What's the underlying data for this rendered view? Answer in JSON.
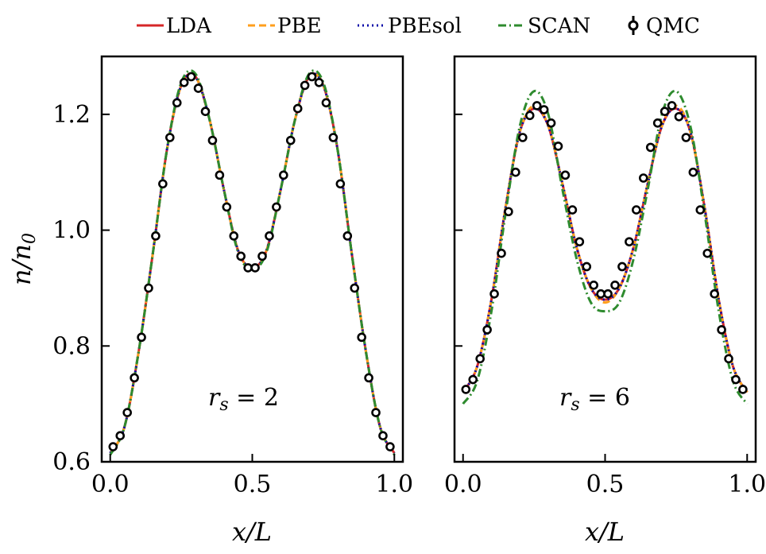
{
  "chart_data": {
    "type": "line",
    "ylabel": "n/n0",
    "xlabel": "x/L",
    "legend": {
      "placement": "top-center",
      "entries": [
        {
          "name": "LDA",
          "color": "#d62728",
          "style": "solid"
        },
        {
          "name": "PBE",
          "color": "#ff9f1c",
          "style": "dashed"
        },
        {
          "name": "PBEsol",
          "color": "#0a0aa8",
          "style": "dotted"
        },
        {
          "name": "SCAN",
          "color": "#2e8b2e",
          "style": "dashdot"
        },
        {
          "name": "QMC",
          "color": "#000000",
          "style": "markers"
        }
      ]
    },
    "panels": [
      {
        "annotation": "r_s = 2",
        "xlim": [
          -0.03,
          1.03
        ],
        "ylim": [
          0.6,
          1.3
        ],
        "xticks": [
          "0.0",
          "0.5",
          "1.0"
        ],
        "xtick_values": [
          0,
          0.5,
          1
        ],
        "yticks": [
          "0.6",
          "0.8",
          "1.0",
          "1.2"
        ],
        "ytick_values": [
          0.6,
          0.8,
          1.0,
          1.2
        ],
        "curves": {
          "x": [
            0.0,
            0.05,
            0.1,
            0.15,
            0.2,
            0.25,
            0.3,
            0.35,
            0.4,
            0.45,
            0.5,
            0.55,
            0.6,
            0.65,
            0.7,
            0.75,
            0.8,
            0.85,
            0.9,
            0.95,
            1.0
          ],
          "LDA": [
            0.615,
            0.66,
            0.79,
            0.96,
            1.14,
            1.25,
            1.265,
            1.19,
            1.07,
            0.965,
            0.935,
            0.965,
            1.07,
            1.19,
            1.265,
            1.25,
            1.14,
            0.96,
            0.79,
            0.66,
            0.615
          ],
          "PBE": [
            0.615,
            0.66,
            0.79,
            0.96,
            1.14,
            1.25,
            1.265,
            1.19,
            1.07,
            0.965,
            0.935,
            0.965,
            1.07,
            1.19,
            1.265,
            1.25,
            1.14,
            0.96,
            0.79,
            0.66,
            0.615
          ],
          "PBEsol": [
            0.615,
            0.66,
            0.79,
            0.96,
            1.14,
            1.25,
            1.265,
            1.19,
            1.07,
            0.965,
            0.935,
            0.965,
            1.07,
            1.19,
            1.265,
            1.25,
            1.14,
            0.96,
            0.79,
            0.66,
            0.615
          ],
          "SCAN": [
            0.612,
            0.66,
            0.79,
            0.96,
            1.14,
            1.255,
            1.27,
            1.19,
            1.07,
            0.962,
            0.932,
            0.962,
            1.07,
            1.19,
            1.27,
            1.255,
            1.14,
            0.96,
            0.79,
            0.66,
            0.612
          ]
        },
        "qmc": {
          "x": [
            0.01,
            0.035,
            0.06,
            0.085,
            0.11,
            0.135,
            0.16,
            0.185,
            0.21,
            0.235,
            0.26,
            0.285,
            0.31,
            0.335,
            0.36,
            0.385,
            0.41,
            0.435,
            0.46,
            0.485,
            0.51,
            0.535,
            0.56,
            0.585,
            0.61,
            0.635,
            0.66,
            0.685,
            0.71,
            0.735,
            0.76,
            0.785,
            0.81,
            0.835,
            0.86,
            0.885,
            0.91,
            0.935,
            0.96,
            0.985
          ],
          "y": [
            0.626,
            0.645,
            0.685,
            0.745,
            0.815,
            0.9,
            0.99,
            1.08,
            1.16,
            1.22,
            1.255,
            1.265,
            1.245,
            1.205,
            1.155,
            1.095,
            1.04,
            0.99,
            0.955,
            0.935,
            0.935,
            0.955,
            0.99,
            1.04,
            1.095,
            1.155,
            1.21,
            1.25,
            1.265,
            1.255,
            1.22,
            1.16,
            1.08,
            0.99,
            0.9,
            0.815,
            0.745,
            0.685,
            0.645,
            0.626
          ]
        }
      },
      {
        "annotation": "r_s = 6",
        "xlim": [
          -0.03,
          1.03
        ],
        "ylim": [
          0.6,
          1.3
        ],
        "xticks": [
          "0.0",
          "0.5",
          "1.0"
        ],
        "xtick_values": [
          0,
          0.5,
          1
        ],
        "yticks": [],
        "ytick_values": [
          0.6,
          0.8,
          1.0,
          1.2
        ],
        "curves": {
          "x": [
            0.0,
            0.05,
            0.1,
            0.15,
            0.2,
            0.25,
            0.3,
            0.35,
            0.4,
            0.45,
            0.5,
            0.55,
            0.6,
            0.65,
            0.7,
            0.75,
            0.8,
            0.85,
            0.9,
            0.95,
            1.0
          ],
          "LDA": [
            0.72,
            0.765,
            0.88,
            1.04,
            1.17,
            1.21,
            1.18,
            1.08,
            0.97,
            0.9,
            0.88,
            0.9,
            0.97,
            1.08,
            1.18,
            1.21,
            1.17,
            1.04,
            0.88,
            0.765,
            0.72
          ],
          "PBE": [
            0.72,
            0.765,
            0.88,
            1.04,
            1.17,
            1.215,
            1.18,
            1.08,
            0.97,
            0.9,
            0.875,
            0.9,
            0.97,
            1.08,
            1.18,
            1.215,
            1.17,
            1.04,
            0.88,
            0.765,
            0.72
          ],
          "PBEsol": [
            0.72,
            0.765,
            0.88,
            1.04,
            1.17,
            1.21,
            1.18,
            1.08,
            0.97,
            0.9,
            0.88,
            0.9,
            0.97,
            1.08,
            1.18,
            1.21,
            1.17,
            1.04,
            0.88,
            0.765,
            0.72
          ],
          "SCAN": [
            0.7,
            0.74,
            0.86,
            1.03,
            1.18,
            1.24,
            1.2,
            1.07,
            0.95,
            0.875,
            0.86,
            0.875,
            0.95,
            1.07,
            1.2,
            1.24,
            1.18,
            1.03,
            0.86,
            0.74,
            0.7
          ]
        },
        "qmc": {
          "x": [
            0.01,
            0.035,
            0.06,
            0.085,
            0.11,
            0.135,
            0.16,
            0.185,
            0.21,
            0.235,
            0.26,
            0.285,
            0.31,
            0.335,
            0.36,
            0.385,
            0.41,
            0.435,
            0.46,
            0.485,
            0.51,
            0.535,
            0.56,
            0.585,
            0.61,
            0.635,
            0.66,
            0.685,
            0.71,
            0.735,
            0.76,
            0.785,
            0.81,
            0.835,
            0.86,
            0.885,
            0.91,
            0.935,
            0.96,
            0.985
          ],
          "y": [
            0.725,
            0.742,
            0.778,
            0.828,
            0.89,
            0.96,
            1.032,
            1.1,
            1.16,
            1.198,
            1.215,
            1.208,
            1.185,
            1.145,
            1.095,
            1.035,
            0.98,
            0.937,
            0.905,
            0.89,
            0.89,
            0.905,
            0.937,
            0.98,
            1.035,
            1.09,
            1.143,
            1.185,
            1.205,
            1.215,
            1.196,
            1.16,
            1.1,
            1.035,
            0.96,
            0.89,
            0.828,
            0.778,
            0.742,
            0.725
          ]
        }
      }
    ]
  }
}
